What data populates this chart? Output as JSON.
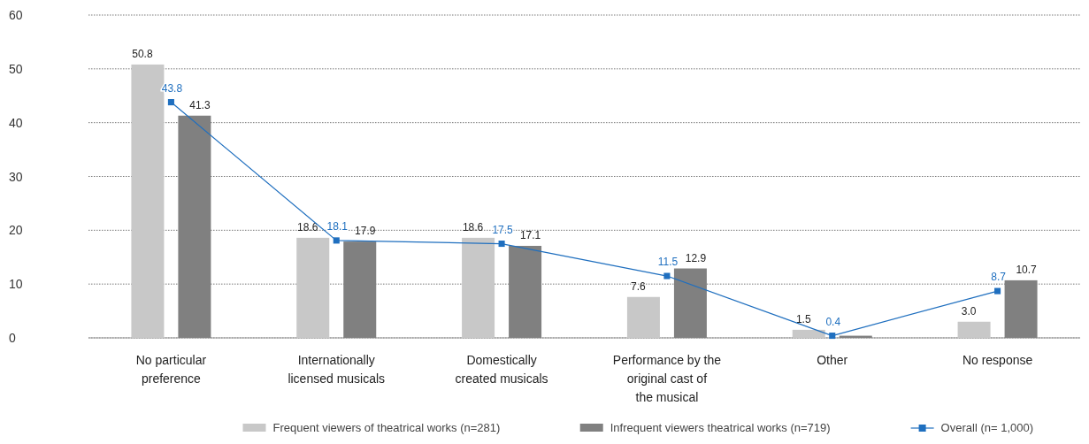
{
  "chart_data": {
    "type": "bar",
    "categories": [
      "No particular preference",
      "Internationally licensed musicals",
      "Domestically created musicals",
      "Performance by the original cast of the musical",
      "Other",
      "No response"
    ],
    "series": [
      {
        "name": "Frequent viewers of theatrical works (n=281)",
        "color": "#c8c8c8",
        "values": [
          50.8,
          18.6,
          18.6,
          7.6,
          1.5,
          3.0
        ],
        "value_labels": [
          "50.8",
          "18.6",
          "18.6",
          "7.6",
          "1.5",
          "3.0"
        ]
      },
      {
        "name": "Infrequent viewers theatrical works (n=719)",
        "color": "#808080",
        "values": [
          41.3,
          17.9,
          17.1,
          12.9,
          0.4,
          10.7
        ],
        "value_labels": [
          "41.3",
          "17.9",
          "17.1",
          "12.9",
          null,
          "10.7"
        ]
      },
      {
        "name": "Overall (n= 1,000)",
        "type": "line",
        "color": "#1f6fbf",
        "values": [
          43.8,
          18.1,
          17.5,
          11.5,
          0.4,
          8.7
        ],
        "value_labels": [
          "43.8",
          "18.1",
          "17.5",
          "11.5",
          "0.4",
          "8.7"
        ]
      }
    ],
    "ylim": [
      0,
      60
    ],
    "yticks": [
      0,
      10,
      20,
      30,
      40,
      50,
      60
    ],
    "grid": "y",
    "legend": "bottom right",
    "marker": "square"
  }
}
